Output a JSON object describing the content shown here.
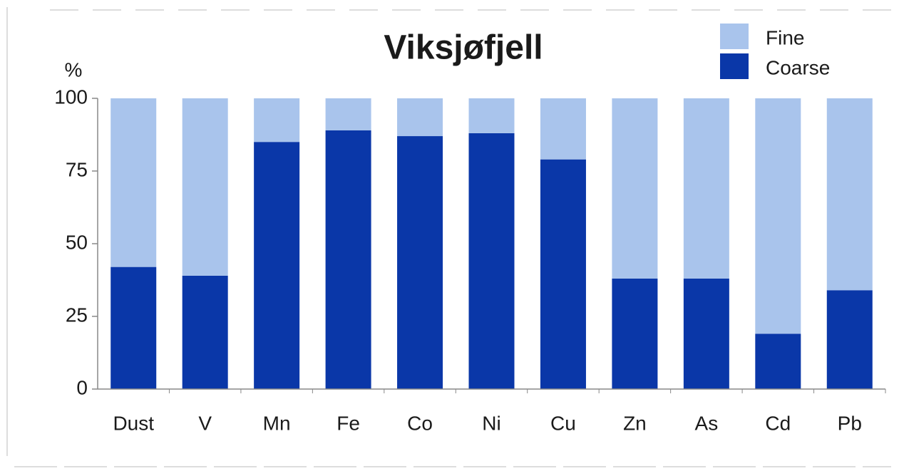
{
  "chart_data": {
    "type": "stacked_bar",
    "title": "Viksjøfjell",
    "y_label": "%",
    "categories": [
      "Dust",
      "V",
      "Mn",
      "Fe",
      "Co",
      "Ni",
      "Cu",
      "Zn",
      "As",
      "Cd",
      "Pb"
    ],
    "series": [
      {
        "name": "Coarse",
        "color": "#0a37a8",
        "values": [
          42,
          39,
          85,
          89,
          87,
          88,
          79,
          38,
          38,
          19,
          34
        ]
      },
      {
        "name": "Fine",
        "color": "#a9c4ec",
        "values": [
          58,
          61,
          15,
          11,
          13,
          12,
          21,
          62,
          62,
          81,
          66
        ]
      }
    ],
    "ylim": [
      0,
      100
    ],
    "yticks": [
      0,
      25,
      50,
      75,
      100
    ],
    "grid": false,
    "legend": "top-right"
  }
}
